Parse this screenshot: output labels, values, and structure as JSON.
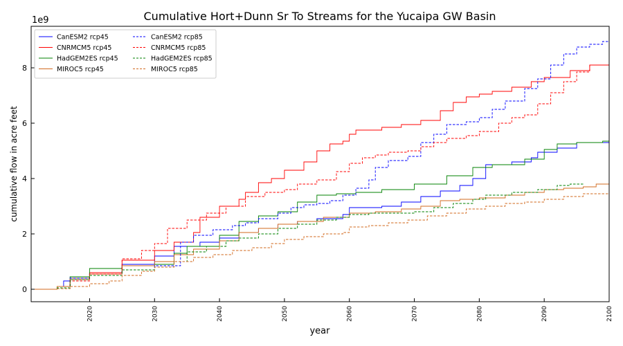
{
  "chart_data": {
    "type": "line",
    "title": "Cumulative Hort+Dunn Sr To Streams for the Yucaipa GW Basin",
    "xlabel": "year",
    "ylabel": "cumulative flow in acre feet",
    "y_multiplier_label": "1e9",
    "xlim": [
      2011,
      2100
    ],
    "ylim": [
      -0.45,
      9.5
    ],
    "x_ticks": [
      2020,
      2030,
      2040,
      2050,
      2060,
      2070,
      2080,
      2090,
      2100
    ],
    "y_ticks": [
      0,
      2,
      4,
      6,
      8
    ],
    "grid": false,
    "legend_placement": "top-left",
    "legend_columns": 2,
    "series": [
      {
        "name": "CanESM2 rcp45",
        "color": "#0000ff",
        "dash": "solid",
        "x": [
          2011,
          2015,
          2016,
          2017,
          2020,
          2025,
          2030,
          2033,
          2037,
          2040,
          2043,
          2046,
          2049,
          2052,
          2055,
          2059,
          2060,
          2065,
          2068,
          2071,
          2074,
          2077,
          2079,
          2081,
          2085,
          2088,
          2089,
          2092,
          2095,
          2100
        ],
        "y": [
          0.0,
          0.1,
          0.3,
          0.45,
          0.6,
          0.9,
          1.2,
          1.55,
          1.7,
          1.85,
          2.05,
          2.2,
          2.35,
          2.45,
          2.55,
          2.7,
          2.95,
          3.0,
          3.15,
          3.35,
          3.55,
          3.75,
          4.0,
          4.5,
          4.6,
          4.75,
          4.95,
          5.1,
          5.3,
          5.4
        ]
      },
      {
        "name": "CNRMCM5 rcp45",
        "color": "#ff0000",
        "dash": "solid",
        "x": [
          2011,
          2015,
          2017,
          2020,
          2025,
          2030,
          2033,
          2036,
          2037,
          2040,
          2043,
          2044,
          2046,
          2048,
          2050,
          2053,
          2055,
          2057,
          2059,
          2060,
          2061,
          2065,
          2068,
          2071,
          2074,
          2076,
          2078,
          2080,
          2082,
          2085,
          2088,
          2090,
          2094,
          2097,
          2100
        ],
        "y": [
          0.0,
          0.1,
          0.35,
          0.6,
          1.05,
          1.4,
          1.7,
          2.05,
          2.6,
          3.0,
          3.25,
          3.5,
          3.85,
          4.0,
          4.3,
          4.6,
          5.0,
          5.25,
          5.35,
          5.6,
          5.75,
          5.85,
          5.95,
          6.1,
          6.45,
          6.75,
          6.95,
          7.05,
          7.15,
          7.3,
          7.5,
          7.65,
          7.9,
          8.1,
          8.3
        ]
      },
      {
        "name": "HadGEM2ES rcp45",
        "color": "#008000",
        "dash": "solid",
        "x": [
          2011,
          2015,
          2017,
          2020,
          2025,
          2030,
          2033,
          2035,
          2040,
          2043,
          2046,
          2049,
          2052,
          2055,
          2058,
          2061,
          2065,
          2070,
          2075,
          2079,
          2082,
          2087,
          2090,
          2092,
          2095,
          2099,
          2100
        ],
        "y": [
          0.0,
          0.1,
          0.45,
          0.75,
          0.85,
          0.9,
          1.3,
          1.55,
          1.95,
          2.45,
          2.65,
          2.8,
          3.15,
          3.4,
          3.45,
          3.5,
          3.6,
          3.8,
          4.1,
          4.4,
          4.5,
          4.7,
          5.05,
          5.25,
          5.3,
          5.35,
          5.5
        ]
      },
      {
        "name": "MIROC5 rcp45",
        "color": "#d2691e",
        "dash": "solid",
        "x": [
          2011,
          2015,
          2017,
          2020,
          2025,
          2030,
          2033,
          2036,
          2040,
          2043,
          2046,
          2049,
          2052,
          2056,
          2060,
          2064,
          2068,
          2071,
          2074,
          2077,
          2080,
          2084,
          2087,
          2090,
          2093,
          2096,
          2098,
          2100
        ],
        "y": [
          0.0,
          0.1,
          0.4,
          0.55,
          0.85,
          1.0,
          1.25,
          1.45,
          1.75,
          2.05,
          2.2,
          2.35,
          2.45,
          2.6,
          2.75,
          2.8,
          2.9,
          3.0,
          3.2,
          3.25,
          3.3,
          3.4,
          3.5,
          3.6,
          3.65,
          3.7,
          3.8,
          3.9
        ]
      },
      {
        "name": "CanESM2 rcp85",
        "color": "#0000ff",
        "dash": "dashed",
        "x": [
          2011,
          2015,
          2017,
          2020,
          2025,
          2030,
          2034,
          2036,
          2039,
          2042,
          2044,
          2046,
          2049,
          2051,
          2053,
          2055,
          2057,
          2059,
          2061,
          2063,
          2064,
          2066,
          2069,
          2071,
          2073,
          2075,
          2078,
          2080,
          2082,
          2084,
          2087,
          2089,
          2091,
          2093,
          2095,
          2097,
          2099,
          2100
        ],
        "y": [
          0.0,
          0.05,
          0.4,
          0.55,
          0.7,
          0.85,
          1.7,
          1.95,
          2.15,
          2.3,
          2.4,
          2.55,
          2.75,
          2.95,
          3.05,
          3.1,
          3.2,
          3.4,
          3.65,
          3.95,
          4.4,
          4.65,
          4.8,
          5.3,
          5.6,
          5.95,
          6.05,
          6.2,
          6.5,
          6.8,
          7.25,
          7.6,
          8.1,
          8.5,
          8.75,
          8.85,
          8.95,
          9.05
        ]
      },
      {
        "name": "CNRMCM5 rcp85",
        "color": "#ff0000",
        "dash": "dashed",
        "x": [
          2011,
          2015,
          2017,
          2020,
          2025,
          2028,
          2030,
          2032,
          2035,
          2038,
          2041,
          2044,
          2047,
          2050,
          2052,
          2055,
          2058,
          2060,
          2062,
          2064,
          2066,
          2069,
          2071,
          2073,
          2075,
          2078,
          2080,
          2083,
          2085,
          2087,
          2089,
          2091,
          2093,
          2095,
          2097,
          2100
        ],
        "y": [
          0.0,
          0.05,
          0.3,
          0.55,
          1.1,
          1.4,
          1.65,
          2.2,
          2.5,
          2.75,
          3.0,
          3.35,
          3.5,
          3.6,
          3.8,
          3.95,
          4.25,
          4.55,
          4.75,
          4.85,
          4.95,
          5.0,
          5.15,
          5.3,
          5.45,
          5.55,
          5.7,
          6.0,
          6.2,
          6.3,
          6.7,
          7.1,
          7.5,
          7.85,
          8.1,
          8.35
        ]
      },
      {
        "name": "HadGEM2ES rcp85",
        "color": "#008000",
        "dash": "dashed",
        "x": [
          2011,
          2015,
          2017,
          2020,
          2025,
          2030,
          2033,
          2035,
          2038,
          2041,
          2043,
          2046,
          2049,
          2052,
          2055,
          2058,
          2060,
          2063,
          2066,
          2070,
          2073,
          2076,
          2079,
          2081,
          2085,
          2089,
          2092,
          2094,
          2096
        ],
        "y": [
          0.0,
          0.05,
          0.35,
          0.5,
          0.7,
          0.8,
          1.0,
          1.35,
          1.55,
          1.75,
          1.85,
          2.0,
          2.2,
          2.35,
          2.5,
          2.6,
          2.7,
          2.75,
          2.75,
          2.8,
          2.95,
          3.1,
          3.25,
          3.4,
          3.5,
          3.6,
          3.75,
          3.8,
          3.85
        ]
      },
      {
        "name": "MIROC5 rcp85",
        "color": "#d2691e",
        "dash": "dashed",
        "x": [
          2011,
          2015,
          2017,
          2020,
          2023,
          2025,
          2028,
          2030,
          2033,
          2036,
          2039,
          2042,
          2045,
          2048,
          2050,
          2053,
          2056,
          2059,
          2060,
          2063,
          2066,
          2069,
          2072,
          2075,
          2078,
          2081,
          2084,
          2087,
          2090,
          2093,
          2096,
          2100
        ],
        "y": [
          0.0,
          0.02,
          0.1,
          0.2,
          0.3,
          0.5,
          0.65,
          0.8,
          1.0,
          1.15,
          1.25,
          1.4,
          1.5,
          1.65,
          1.8,
          1.9,
          2.0,
          2.05,
          2.25,
          2.3,
          2.4,
          2.5,
          2.65,
          2.75,
          2.9,
          3.0,
          3.1,
          3.15,
          3.25,
          3.35,
          3.45,
          3.55
        ]
      }
    ]
  }
}
